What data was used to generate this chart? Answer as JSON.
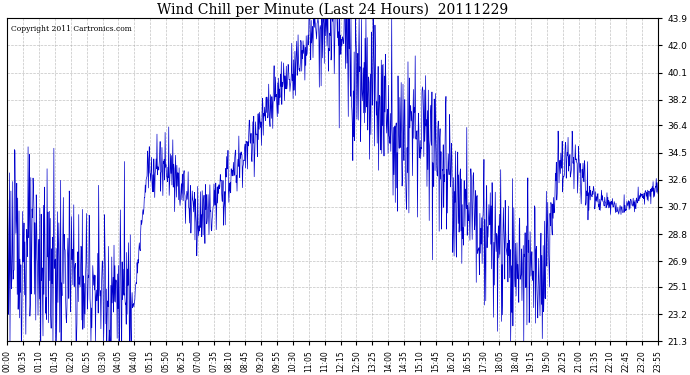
{
  "title": "Wind Chill per Minute (Last 24 Hours)  20111229",
  "copyright": "Copyright 2011 Cartronics.com",
  "line_color": "#0000cc",
  "background_color": "#ffffff",
  "grid_color": "#aaaaaa",
  "yticks": [
    21.3,
    23.2,
    25.1,
    26.9,
    28.8,
    30.7,
    32.6,
    34.5,
    36.4,
    38.2,
    40.1,
    42.0,
    43.9
  ],
  "ymin": 21.3,
  "ymax": 43.9,
  "xtick_labels": [
    "00:00",
    "00:35",
    "01:10",
    "01:45",
    "02:20",
    "02:55",
    "03:30",
    "04:05",
    "04:40",
    "05:15",
    "05:50",
    "06:25",
    "07:00",
    "07:35",
    "08:10",
    "08:45",
    "09:20",
    "09:55",
    "10:30",
    "11:05",
    "11:40",
    "12:15",
    "12:50",
    "13:25",
    "14:00",
    "14:35",
    "15:10",
    "15:45",
    "16:20",
    "16:55",
    "17:30",
    "18:05",
    "18:40",
    "19:15",
    "19:50",
    "20:25",
    "21:00",
    "21:35",
    "22:10",
    "22:45",
    "23:20",
    "23:55"
  ],
  "figsize": [
    6.9,
    3.75
  ],
  "dpi": 100
}
